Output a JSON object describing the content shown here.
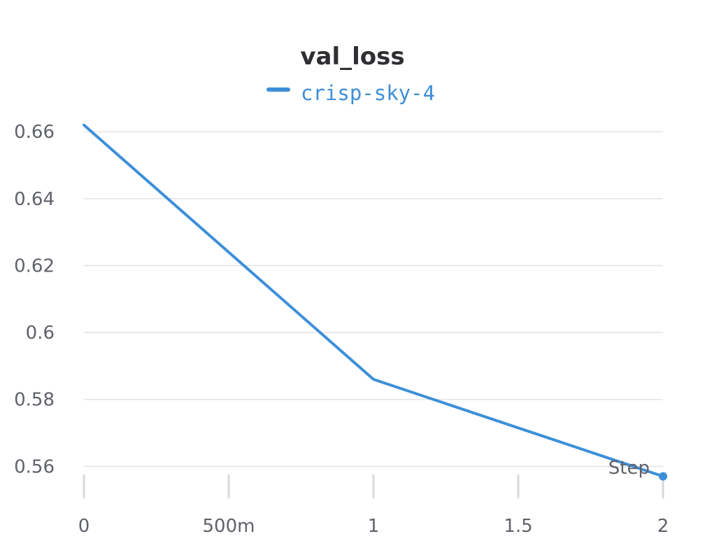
{
  "chart_data": {
    "type": "line",
    "title": "val_loss",
    "xlabel": "Step",
    "ylabel": "",
    "x": [
      0,
      1,
      2
    ],
    "series": [
      {
        "name": "crisp-sky-4",
        "color": "#3d8fd9",
        "values": [
          0.662,
          0.586,
          0.557
        ]
      }
    ],
    "xlim": [
      0,
      2
    ],
    "ylim": [
      0.554,
      0.668
    ],
    "x_ticks": [
      {
        "value": 0,
        "label": "0"
      },
      {
        "value": 0.5,
        "label": "500m"
      },
      {
        "value": 1,
        "label": "1"
      },
      {
        "value": 1.5,
        "label": "1.5"
      },
      {
        "value": 2,
        "label": "2"
      }
    ],
    "y_ticks": [
      {
        "value": 0.56,
        "label": "0.56"
      },
      {
        "value": 0.58,
        "label": "0.58"
      },
      {
        "value": 0.6,
        "label": "0.6"
      },
      {
        "value": 0.62,
        "label": "0.62"
      },
      {
        "value": 0.64,
        "label": "0.64"
      },
      {
        "value": 0.66,
        "label": "0.66"
      }
    ],
    "grid": true,
    "legend_position": "top-center"
  }
}
